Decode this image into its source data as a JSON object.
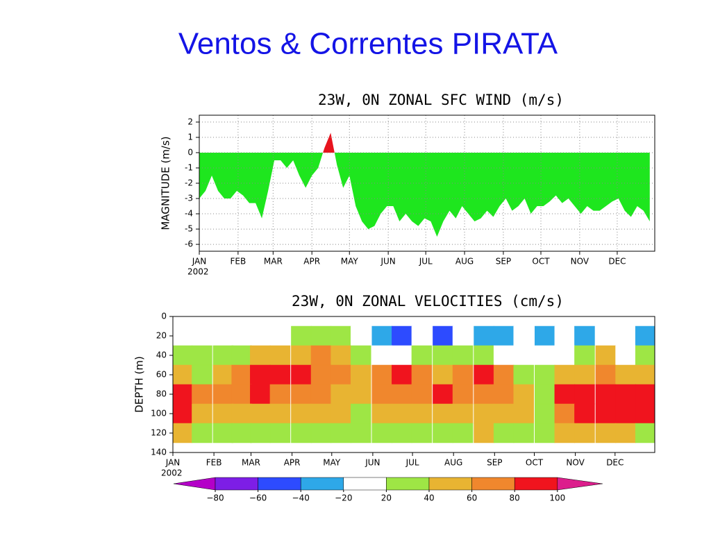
{
  "title": "Ventos & Correntes PIRATA",
  "chart_data": [
    {
      "type": "area",
      "title": "23W, 0N ZONAL SFC WIND (m/s)",
      "y_label": "MAGNITUDE (m/s)",
      "year_label": "2002",
      "positive_color": "#e8141e",
      "negative_color": "#1ee61e",
      "xlim": [
        1,
        365
      ],
      "xticks": [
        {
          "value": 1,
          "label": "JAN"
        },
        {
          "value": 32,
          "label": "FEB"
        },
        {
          "value": 60,
          "label": "MAR"
        },
        {
          "value": 91,
          "label": "APR"
        },
        {
          "value": 121,
          "label": "MAY"
        },
        {
          "value": 152,
          "label": "JUN"
        },
        {
          "value": 182,
          "label": "JUL"
        },
        {
          "value": 213,
          "label": "AUG"
        },
        {
          "value": 244,
          "label": "SEP"
        },
        {
          "value": 274,
          "label": "OCT"
        },
        {
          "value": 305,
          "label": "NOV"
        },
        {
          "value": 335,
          "label": "DEC"
        }
      ],
      "ylim": [
        -6.45,
        2.45
      ],
      "yticks": [
        -6,
        -5,
        -4,
        -3,
        -2,
        -1,
        0,
        1,
        2
      ],
      "grid": true,
      "x": [
        1,
        6,
        11,
        16,
        21,
        26,
        31,
        36,
        41,
        46,
        51,
        56,
        61,
        66,
        71,
        76,
        81,
        86,
        91,
        96,
        101,
        106,
        111,
        116,
        121,
        126,
        131,
        136,
        141,
        146,
        151,
        156,
        161,
        166,
        171,
        176,
        181,
        186,
        191,
        196,
        201,
        206,
        211,
        216,
        221,
        226,
        231,
        236,
        241,
        246,
        251,
        256,
        261,
        266,
        271,
        276,
        281,
        286,
        291,
        296,
        301,
        306,
        311,
        316,
        321,
        326,
        331,
        336,
        341,
        346,
        351,
        356,
        361
      ],
      "values": [
        -3,
        -2.5,
        -1.5,
        -2.5,
        -3,
        -3,
        -2.5,
        -2.8,
        -3.3,
        -3.3,
        -4.3,
        -2.5,
        -0.5,
        -0.5,
        -1,
        -0.5,
        -1.5,
        -2.3,
        -1.5,
        -1,
        0.3,
        1.3,
        -0.8,
        -2.3,
        -1.5,
        -3.5,
        -4.5,
        -5,
        -4.8,
        -4,
        -3.5,
        -3.5,
        -4.5,
        -4,
        -4.5,
        -4.8,
        -4.3,
        -4.5,
        -5.5,
        -4.5,
        -3.8,
        -4.3,
        -3.5,
        -4,
        -4.5,
        -4.3,
        -3.8,
        -4.2,
        -3.5,
        -3,
        -3.8,
        -3.5,
        -3,
        -4,
        -3.5,
        -3.5,
        -3.2,
        -2.8,
        -3.3,
        -3,
        -3.5,
        -4,
        -3.5,
        -3.8,
        -3.8,
        -3.5,
        -3.2,
        -3,
        -3.8,
        -4.2,
        -3.5,
        -3.8,
        -4.5
      ]
    },
    {
      "type": "heatmap",
      "title": "23W, 0N ZONAL VELOCITIES (cm/s)",
      "y_label": "DEPTH (m)",
      "year_label": "2002",
      "xlim": [
        1,
        365
      ],
      "xticks": [
        {
          "value": 1,
          "label": "JAN"
        },
        {
          "value": 32,
          "label": "FEB"
        },
        {
          "value": 60,
          "label": "MAR"
        },
        {
          "value": 91,
          "label": "APR"
        },
        {
          "value": 121,
          "label": "MAY"
        },
        {
          "value": 152,
          "label": "JUN"
        },
        {
          "value": 182,
          "label": "JUL"
        },
        {
          "value": 213,
          "label": "AUG"
        },
        {
          "value": 244,
          "label": "SEP"
        },
        {
          "value": 274,
          "label": "OCT"
        },
        {
          "value": 305,
          "label": "NOV"
        },
        {
          "value": 335,
          "label": "DEC"
        }
      ],
      "ylim": [
        0,
        140
      ],
      "invert_y": true,
      "yticks": [
        0,
        20,
        40,
        60,
        80,
        100,
        120,
        140
      ],
      "x": [
        8,
        23,
        39,
        53,
        67,
        82,
        98,
        113,
        128,
        143,
        159,
        174,
        189,
        205,
        220,
        236,
        251,
        266,
        282,
        297,
        312,
        328,
        343,
        358
      ],
      "depths": [
        20,
        40,
        60,
        80,
        100,
        120
      ],
      "z": [
        [
          -10,
          10,
          15,
          10,
          10,
          15,
          30,
          35,
          30,
          10,
          -30,
          -50,
          -20,
          -60,
          10,
          -30,
          -30,
          -20,
          -30,
          -10,
          -30,
          -10,
          -20,
          -30
        ],
        [
          30,
          20,
          25,
          30,
          40,
          45,
          55,
          60,
          40,
          20,
          15,
          10,
          20,
          30,
          30,
          20,
          10,
          0,
          -10,
          15,
          30,
          40,
          10,
          20
        ],
        [
          50,
          35,
          50,
          60,
          80,
          85,
          85,
          70,
          60,
          55,
          70,
          90,
          60,
          55,
          70,
          80,
          70,
          30,
          20,
          50,
          50,
          60,
          55,
          40
        ],
        [
          85,
          60,
          60,
          65,
          80,
          75,
          70,
          60,
          55,
          45,
          60,
          70,
          60,
          80,
          75,
          75,
          60,
          55,
          30,
          90,
          95,
          80,
          85,
          90
        ],
        [
          90,
          45,
          40,
          40,
          55,
          50,
          45,
          40,
          40,
          30,
          40,
          40,
          45,
          55,
          50,
          55,
          40,
          45,
          35,
          70,
          85,
          80,
          85,
          85
        ],
        [
          40,
          30,
          30,
          20,
          25,
          30,
          25,
          20,
          30,
          20,
          25,
          25,
          30,
          35,
          20,
          40,
          30,
          20,
          35,
          50,
          45,
          40,
          45,
          35
        ]
      ],
      "levels": [
        {
          "value": -80,
          "label": "−80"
        },
        {
          "value": -60,
          "label": "−60"
        },
        {
          "value": -40,
          "label": "−40"
        },
        {
          "value": -20,
          "label": "−20"
        },
        20,
        40,
        60,
        80,
        100
      ],
      "colors": [
        "#b400c8",
        "#7d1ee6",
        "#2d4bff",
        "#2ea8e8",
        "#ffffff",
        "#9ee645",
        "#e8b432",
        "#f0872d",
        "#f0141e",
        "#dc1e8c"
      ]
    }
  ]
}
